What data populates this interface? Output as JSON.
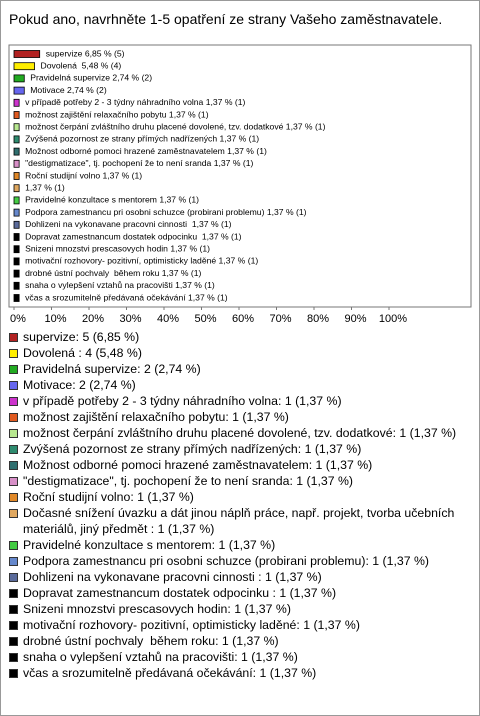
{
  "chart_data": {
    "type": "bar",
    "orientation": "horizontal",
    "title": "Pokud ano, navrhněte 1-5 opatření ze strany Vašeho zaměstnavatele.",
    "values": [
      6.85,
      5.48,
      2.74,
      2.74,
      1.37,
      1.37,
      1.37,
      1.37,
      1.37,
      1.37,
      1.37,
      1.37,
      1.37,
      1.37,
      1.37,
      1.37,
      1.37,
      1.37,
      1.37,
      1.37,
      1.37
    ],
    "value_labels": [
      "supervize 6,85 % (5)",
      "Dovolená  5,48 % (4)",
      "Pravidelná supervize 2,74 % (2)",
      "Motivace 2,74 % (2)",
      "v případě potřeby 2 - 3 týdny náhradního volna 1,37 % (1)",
      "možnost zajištění relaxačního pobytu 1,37 % (1)",
      "možnost čerpání zvláštního druhu placené dovolené, tzv. dodatkové 1,37 % (1)",
      "Zvýšená pozornost ze strany přímých nadřízených 1,37 % (1)",
      "Možnost odborné pomoci hrazené zaměstnavatelem 1,37 % (1)",
      "\"destigmatizace\", tj. pochopení že to není sranda 1,37 % (1)",
      "Roční studijní volno 1,37 % (1)",
      "1,37 % (1)",
      "Pravidelné konzultace s mentorem 1,37 % (1)",
      "Podpora zamestnancu pri osobni schuzce (probirani problemu) 1,37 % (1)",
      "Dohlizeni na vykonavane pracovni cinnosti  1,37 % (1)",
      "Dopravat zamestnancum dostatek odpocinku  1,37 % (1)",
      "Snizeni mnozstvi prescasovych hodin 1,37 % (1)",
      "motivační rozhovory- pozitivní, optimisticky laděné 1,37 % (1)",
      "drobné ústní pochvaly  během roku 1,37 % (1)",
      "snaha o vylepšení vztahů na pracovišti 1,37 % (1)",
      "včas a srozumitelně předávaná očekávání 1,37 % (1)"
    ],
    "legend": [
      "supervize: 5 (6,85 %)",
      "Dovolená : 4 (5,48 %)",
      "Pravidelná supervize: 2 (2,74 %)",
      "Motivace: 2 (2,74 %)",
      "v případě potřeby 2 - 3 týdny náhradního volna: 1 (1,37 %)",
      "možnost zajištění relaxačního pobytu: 1 (1,37 %)",
      "možnost čerpání zvláštního druhu placené dovolené, tzv. dodatkové: 1 (1,37 %)",
      "Zvýšená pozornost ze strany přímých nadřízených: 1 (1,37 %)",
      "Možnost odborné pomoci hrazené zaměstnavatelem: 1 (1,37 %)",
      "\"destigmatizace\", tj. pochopení že to není sranda: 1 (1,37 %)",
      "Roční studijní volno: 1 (1,37 %)",
      "Dočasné snížení úvazku a dát jinou náplň práce, např. projekt, tvorba učebních materiálů, jiný předmět : 1 (1,37 %)",
      "Pravidelné konzultace s mentorem: 1 (1,37 %)",
      "Podpora zamestnancu pri osobni schuzce (probirani problemu): 1 (1,37 %)",
      "Dohlizeni na vykonavane pracovni cinnosti : 1 (1,37 %)",
      "Dopravat zamestnancum dostatek odpocinku : 1 (1,37 %)",
      "Snizeni mnozstvi prescasovych hodin: 1 (1,37 %)",
      "motivační rozhovory- pozitivní, optimisticky laděné: 1 (1,37 %)",
      "drobné ústní pochvaly  během roku: 1 (1,37 %)",
      "snaha o vylepšení vztahů na pracovišti: 1 (1,37 %)",
      "včas a srozumitelně předávaná očekávání: 1 (1,37 %)"
    ],
    "colors": [
      "#b22222",
      "#ffee00",
      "#22aa22",
      "#6666ee",
      "#cc33cc",
      "#e05a20",
      "#b8e890",
      "#2e8b6f",
      "#2f6f6f",
      "#d890c8",
      "#e08828",
      "#e0a860",
      "#44cc44",
      "#6688cc",
      "#5a6a9a",
      "#000000",
      "#000000",
      "#000000",
      "#000000",
      "#000000",
      "#000000"
    ],
    "xlim": [
      0,
      100
    ],
    "xticks": [
      {
        "value": 0,
        "label": "0%"
      },
      {
        "value": 10,
        "label": "10%"
      },
      {
        "value": 20,
        "label": "20%"
      },
      {
        "value": 30,
        "label": "30%"
      },
      {
        "value": 40,
        "label": "40%"
      },
      {
        "value": 50,
        "label": "50%"
      },
      {
        "value": 60,
        "label": "60%"
      },
      {
        "value": 70,
        "label": "70%"
      },
      {
        "value": 80,
        "label": "80%"
      },
      {
        "value": 90,
        "label": "90%"
      },
      {
        "value": 100,
        "label": "100%"
      }
    ]
  }
}
